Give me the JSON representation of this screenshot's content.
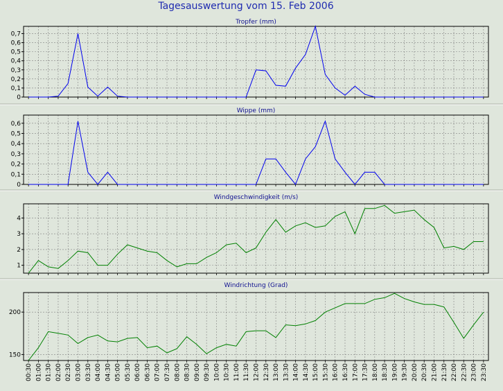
{
  "page_title": "Tagesauswertung vom 15. Feb 2006",
  "colors": {
    "background": "#dfe6dc",
    "rain_line": "#0000ee",
    "wind_line": "#008000",
    "grid": "#808080"
  },
  "x_labels": [
    "00:30",
    "01:00",
    "01:30",
    "02:00",
    "02:30",
    "03:00",
    "03:30",
    "04:00",
    "04:30",
    "05:00",
    "05:30",
    "06:00",
    "06:30",
    "07:00",
    "07:30",
    "08:00",
    "08:30",
    "09:00",
    "09:30",
    "10:00",
    "10:30",
    "11:00",
    "11:30",
    "12:00",
    "12:30",
    "13:00",
    "13:30",
    "14:00",
    "14:30",
    "15:00",
    "15:30",
    "16:00",
    "16:30",
    "17:00",
    "17:30",
    "18:00",
    "18:30",
    "19:00",
    "19:30",
    "20:00",
    "20:30",
    "21:00",
    "21:30",
    "22:00",
    "22:30",
    "23:00",
    "23:30"
  ],
  "chart_data": [
    {
      "type": "line",
      "title": "Tropfer (mm)",
      "ylim": [
        0,
        0.78
      ],
      "yticks": [
        0,
        0.1,
        0.2,
        0.3,
        0.4,
        0.5,
        0.6,
        0.7
      ],
      "ytick_labels": [
        "0",
        "0,1",
        "0,2",
        "0,3",
        "0,4",
        "0,5",
        "0,6",
        "0,7"
      ],
      "color": "#0000ee",
      "values": [
        0,
        0,
        0,
        0.01,
        0.15,
        0.7,
        0.11,
        0.01,
        0.11,
        0.01,
        0,
        0,
        0,
        0,
        0,
        0,
        0,
        0,
        0,
        0,
        0,
        0,
        0,
        0.3,
        0.29,
        0.13,
        0.12,
        0.32,
        0.47,
        0.78,
        0.25,
        0.1,
        0.02,
        0.12,
        0.03,
        0,
        0,
        0,
        0,
        0,
        0,
        0,
        0,
        0,
        0,
        0,
        0
      ]
    },
    {
      "type": "line",
      "title": "Wippe (mm)",
      "ylim": [
        0,
        0.68
      ],
      "yticks": [
        0,
        0.1,
        0.2,
        0.3,
        0.4,
        0.5,
        0.6
      ],
      "ytick_labels": [
        "0",
        "0,1",
        "0,2",
        "0,3",
        "0,4",
        "0,5",
        "0,6"
      ],
      "color": "#0000ee",
      "values": [
        0,
        0,
        0,
        0,
        0,
        0.62,
        0.12,
        0,
        0.12,
        0,
        0,
        0,
        0,
        0,
        0,
        0,
        0,
        0,
        0,
        0,
        0,
        0,
        0,
        0,
        0.25,
        0.25,
        0.12,
        0,
        0.25,
        0.37,
        0.62,
        0.25,
        0.12,
        0,
        0.12,
        0.12,
        0,
        0,
        0,
        0,
        0,
        0,
        0,
        0,
        0,
        0,
        0
      ]
    },
    {
      "type": "line",
      "title": "Windgeschwindigkeit (m/s)",
      "ylim": [
        0.5,
        4.9
      ],
      "yticks": [
        1,
        2,
        3,
        4
      ],
      "ytick_labels": [
        "1",
        "2",
        "3",
        "4"
      ],
      "color": "#008000",
      "values": [
        0.5,
        1.3,
        0.9,
        0.8,
        1.3,
        1.9,
        1.8,
        1.0,
        1.0,
        1.7,
        2.3,
        2.1,
        1.9,
        1.8,
        1.3,
        0.9,
        1.1,
        1.1,
        1.5,
        1.8,
        2.3,
        2.4,
        1.8,
        2.1,
        3.1,
        3.9,
        3.1,
        3.5,
        3.7,
        3.4,
        3.5,
        4.1,
        4.4,
        3.0,
        4.6,
        4.6,
        4.8,
        4.3,
        4.4,
        4.5,
        3.9,
        3.4,
        2.1,
        2.2,
        2.0,
        2.5,
        2.5
      ]
    },
    {
      "type": "line",
      "title": "Windrichtung (Grad)",
      "ylim": [
        143,
        223
      ],
      "yticks": [
        150,
        200
      ],
      "ytick_labels": [
        "150",
        "200"
      ],
      "color": "#008000",
      "values": [
        143,
        158,
        177,
        175,
        173,
        163,
        170,
        173,
        166,
        165,
        169,
        170,
        158,
        160,
        152,
        157,
        171,
        162,
        151,
        158,
        162,
        160,
        177,
        178,
        178,
        170,
        185,
        184,
        186,
        190,
        200,
        205,
        210,
        210,
        210,
        215,
        217,
        222,
        216,
        212,
        209,
        209,
        206,
        188,
        169,
        185,
        200
      ]
    }
  ]
}
